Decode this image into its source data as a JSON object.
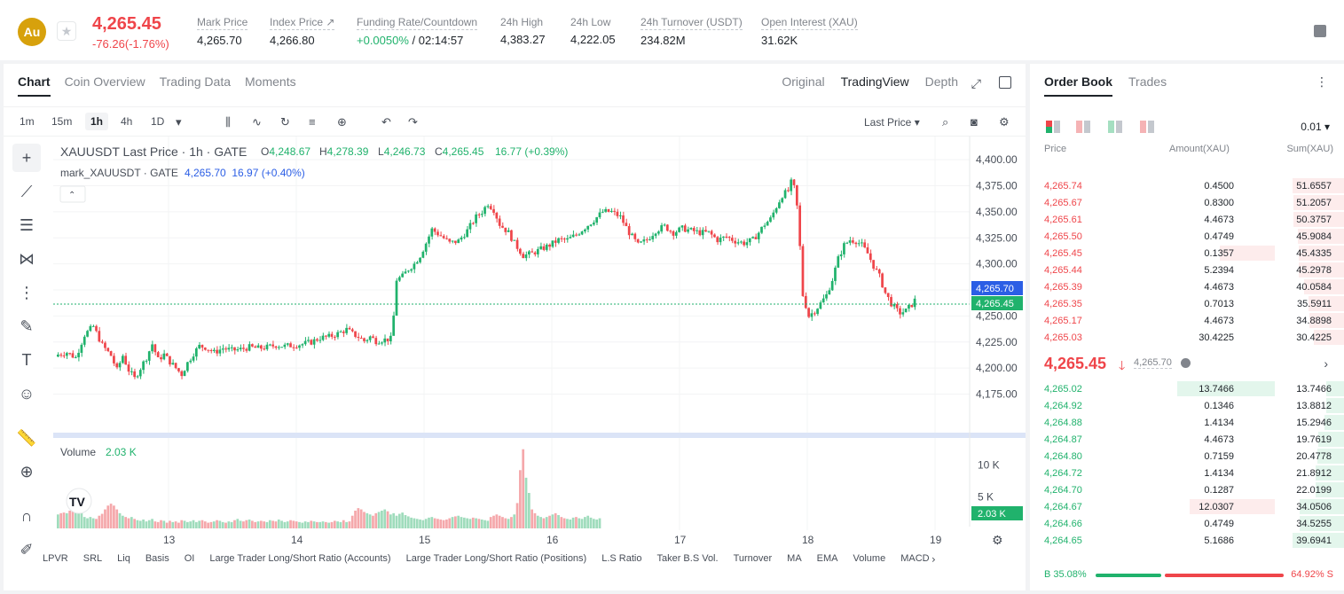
{
  "ticker": {
    "coin": "Au",
    "last_price": "4,265.45",
    "change": "-76.26(-1.76%)",
    "stats": [
      {
        "label": "Mark Price",
        "value": "4,265.70"
      },
      {
        "label": "Index Price ↗",
        "value": "4,266.80"
      },
      {
        "label": "Funding Rate/Countdown",
        "value_rate": "+0.0050%",
        "value_count": " / 02:14:57"
      },
      {
        "label": "24h High",
        "value": "4,383.27"
      },
      {
        "label": "24h Low",
        "value": "4,222.05"
      },
      {
        "label": "24h Turnover (USDT)",
        "value": "234.82M"
      },
      {
        "label": "Open Interest (XAU)",
        "value": "31.62K"
      }
    ]
  },
  "chart_tabs": [
    "Chart",
    "Coin Overview",
    "Trading Data",
    "Moments"
  ],
  "view_tabs": [
    "Original",
    "TradingView",
    "Depth"
  ],
  "toolbar": {
    "timeframes": [
      "1m",
      "15m",
      "1h",
      "4h",
      "1D"
    ],
    "price_type": "Last Price"
  },
  "legend": {
    "symbol": "XAUUSDT Last Price · 1h · GATE",
    "o_label": "O",
    "o": "4,248.67",
    "h_label": "H",
    "h": "4,278.39",
    "l_label": "L",
    "l": "4,246.73",
    "c_label": "C",
    "c": "4,265.45",
    "chg": "16.77 (+0.39%)",
    "mark_label": "mark_XAUUSDT · GATE",
    "mark_values": "4,265.70  16.97 (+0.40%)",
    "volume_label": "Volume",
    "volume_value": "2.03 K"
  },
  "chart_data": {
    "type": "candlestick",
    "x_ticks": [
      "13",
      "14",
      "15",
      "16",
      "17",
      "18",
      "19"
    ],
    "y_ticks": [
      "4,400.00",
      "4,375.00",
      "4,350.00",
      "4,325.00",
      "4,300.00",
      "4,275.00",
      "4,250.00",
      "4,225.00",
      "4,200.00",
      "4,175.00"
    ],
    "ylim": [
      4161,
      4412
    ],
    "volume_ticks": [
      "10 K",
      "5 K"
    ],
    "volume_ylim": [
      0,
      14000
    ],
    "mark_price_tag": "4,265.70",
    "last_price_tag": "4,265.45",
    "volume_tag": "2.03 K",
    "close_path": [
      [
        0,
        4213
      ],
      [
        3,
        4215
      ],
      [
        6,
        4210
      ],
      [
        9,
        4232
      ],
      [
        12,
        4240
      ],
      [
        15,
        4222
      ],
      [
        18,
        4212
      ],
      [
        20,
        4198
      ],
      [
        22,
        4212
      ],
      [
        24,
        4198
      ],
      [
        26,
        4190
      ],
      [
        28,
        4200
      ],
      [
        30,
        4210
      ],
      [
        32,
        4223
      ],
      [
        34,
        4208
      ],
      [
        36,
        4213
      ],
      [
        38,
        4206
      ],
      [
        40,
        4200
      ],
      [
        42,
        4194
      ],
      [
        44,
        4205
      ],
      [
        46,
        4214
      ],
      [
        48,
        4221
      ],
      [
        50,
        4220
      ],
      [
        53,
        4215
      ],
      [
        56,
        4219
      ],
      [
        59,
        4217
      ],
      [
        62,
        4218
      ],
      [
        65,
        4220
      ],
      [
        68,
        4219
      ],
      [
        71,
        4220
      ],
      [
        74,
        4222
      ],
      [
        77,
        4221
      ],
      [
        80,
        4222
      ],
      [
        83,
        4223
      ],
      [
        86,
        4225
      ],
      [
        89,
        4229
      ],
      [
        92,
        4230
      ],
      [
        95,
        4233
      ],
      [
        98,
        4237
      ],
      [
        100,
        4233
      ],
      [
        102,
        4230
      ],
      [
        104,
        4226
      ],
      [
        106,
        4230
      ],
      [
        108,
        4226
      ],
      [
        110,
        4227
      ],
      [
        113,
        4228
      ],
      [
        114,
        4250
      ],
      [
        115,
        4285
      ],
      [
        117,
        4288
      ],
      [
        119,
        4295
      ],
      [
        121,
        4300
      ],
      [
        123,
        4308
      ],
      [
        125,
        4320
      ],
      [
        127,
        4333
      ],
      [
        130,
        4327
      ],
      [
        133,
        4320
      ],
      [
        136,
        4322
      ],
      [
        139,
        4332
      ],
      [
        142,
        4345
      ],
      [
        144,
        4350
      ],
      [
        146,
        4358
      ],
      [
        148,
        4352
      ],
      [
        150,
        4338
      ],
      [
        153,
        4330
      ],
      [
        155,
        4320
      ],
      [
        158,
        4308
      ],
      [
        161,
        4310
      ],
      [
        164,
        4314
      ],
      [
        167,
        4318
      ],
      [
        170,
        4323
      ],
      [
        173,
        4323
      ],
      [
        176,
        4328
      ],
      [
        179,
        4335
      ],
      [
        182,
        4342
      ],
      [
        185,
        4350
      ],
      [
        188,
        4350
      ],
      [
        191,
        4345
      ],
      [
        194,
        4330
      ],
      [
        197,
        4318
      ],
      [
        200,
        4323
      ],
      [
        203,
        4332
      ],
      [
        206,
        4336
      ],
      [
        209,
        4330
      ],
      [
        212,
        4334
      ],
      [
        215,
        4332
      ],
      [
        218,
        4330
      ],
      [
        221,
        4330
      ],
      [
        224,
        4323
      ],
      [
        227,
        4326
      ],
      [
        230,
        4322
      ],
      [
        233,
        4320
      ],
      [
        236,
        4323
      ],
      [
        238,
        4330
      ],
      [
        240,
        4338
      ],
      [
        242,
        4343
      ],
      [
        244,
        4355
      ],
      [
        246,
        4366
      ],
      [
        248,
        4370
      ],
      [
        249,
        4378
      ],
      [
        250,
        4373
      ],
      [
        251,
        4355
      ],
      [
        252,
        4316
      ],
      [
        253,
        4270
      ],
      [
        255,
        4250
      ],
      [
        257,
        4255
      ],
      [
        259,
        4262
      ],
      [
        261,
        4270
      ],
      [
        263,
        4285
      ],
      [
        265,
        4305
      ],
      [
        267,
        4318
      ],
      [
        269,
        4323
      ],
      [
        271,
        4322
      ],
      [
        273,
        4318
      ],
      [
        275,
        4310
      ],
      [
        277,
        4298
      ],
      [
        279,
        4288
      ],
      [
        281,
        4272
      ],
      [
        283,
        4262
      ],
      [
        285,
        4255
      ],
      [
        286,
        4253
      ],
      [
        288,
        4255
      ],
      [
        290,
        4261
      ],
      [
        291,
        4265
      ]
    ],
    "volume_heights": [
      2200,
      2400,
      2500,
      2400,
      2800,
      3000,
      2800,
      2600,
      2400,
      1800,
      1600,
      1800,
      1600,
      1500,
      2000,
      2300,
      3000,
      3600,
      3900,
      3600,
      3000,
      2400,
      2000,
      1800,
      1600,
      1800,
      1500,
      1300,
      1200,
      1400,
      1100,
      1300,
      1500,
      1100,
      1000,
      1300,
      1200,
      900,
      1200,
      1000,
      1100,
      900,
      1300,
      1200,
      1000,
      1100,
      1300,
      1000,
      1200,
      1300,
      1100,
      900,
      1000,
      1100,
      1300,
      1200,
      1000,
      900,
      1100,
      1000,
      1300,
      1500,
      1200,
      1100,
      1300,
      1400,
      1200,
      1000,
      1100,
      1200,
      1100,
      1000,
      1300,
      1200,
      1100,
      1400,
      1200,
      1000,
      1100,
      1300,
      1200,
      1100,
      1000,
      900,
      1100,
      1000,
      1200,
      1100,
      1000,
      1000,
      1100,
      1000,
      900,
      1000,
      1200,
      1100,
      1000,
      1300,
      1000,
      1100,
      2000,
      2800,
      3200,
      3000,
      2600,
      2400,
      2200,
      2000,
      2400,
      2600,
      2800,
      3000,
      2700,
      2200,
      2400,
      2000,
      2300,
      2500,
      2100,
      1900,
      1700,
      1600,
      1500,
      1400,
      1300,
      1500,
      1700,
      1800,
      1600,
      1500,
      1400,
      1300,
      1400,
      1600,
      1800,
      1900,
      2000,
      1800,
      1700,
      1600,
      1500,
      1700,
      1600,
      1500,
      1400,
      1300,
      1200,
      1800,
      2000,
      2200,
      2000,
      1800,
      1600,
      1500,
      1800,
      2200,
      4000,
      9200,
      12500,
      8000,
      5600,
      3000,
      2400,
      2000,
      1800,
      1600,
      1800,
      2000,
      2200,
      2400,
      2100,
      1800,
      1600,
      1500,
      1400,
      1700,
      1800,
      1600,
      1500,
      1800,
      2000,
      1700,
      1500,
      1400,
      1600
    ]
  },
  "indicators": [
    "LPVR",
    "SRL",
    "Liq",
    "Basis",
    "OI",
    "Large Trader Long/Short Ratio (Accounts)",
    "Large Trader Long/Short Ratio (Positions)",
    "L.S Ratio",
    "Taker B.S Vol.",
    "Turnover",
    "MA",
    "EMA",
    "Volume",
    "MACD"
  ],
  "order_book": {
    "tabs": [
      "Order Book",
      "Trades"
    ],
    "precision": "0.01",
    "headers": {
      "price": "Price",
      "amount": "Amount(XAU)",
      "sum": "Sum(XAU)"
    },
    "asks": [
      {
        "price": "4,265.74",
        "amount": "0.4500",
        "sum": "51.6557",
        "depth": 1.0
      },
      {
        "price": "4,265.67",
        "amount": "0.8300",
        "sum": "51.2057",
        "depth": 0.99
      },
      {
        "price": "4,265.61",
        "amount": "4.4673",
        "sum": "50.3757",
        "depth": 0.975
      },
      {
        "price": "4,265.50",
        "amount": "0.4749",
        "sum": "45.9084",
        "depth": 0.89
      },
      {
        "price": "4,265.45",
        "amount": "0.1357",
        "sum": "45.4335",
        "depth": 0.88,
        "hl": 0.4
      },
      {
        "price": "4,265.44",
        "amount": "5.2394",
        "sum": "45.2978",
        "depth": 0.877
      },
      {
        "price": "4,265.39",
        "amount": "4.4673",
        "sum": "40.0584",
        "depth": 0.776
      },
      {
        "price": "4,265.35",
        "amount": "0.7013",
        "sum": "35.5911",
        "depth": 0.689
      },
      {
        "price": "4,265.17",
        "amount": "4.4673",
        "sum": "34.8898",
        "depth": 0.675
      },
      {
        "price": "4,265.03",
        "amount": "30.4225",
        "sum": "30.4225",
        "depth": 0.589
      }
    ],
    "mid": {
      "price": "4,265.45",
      "arrow": "🡓",
      "mark": "4,265.70"
    },
    "bids": [
      {
        "price": "4,265.02",
        "amount": "13.7466",
        "sum": "13.7466",
        "depth": 0.346,
        "hl": 0.71
      },
      {
        "price": "4,264.92",
        "amount": "0.1346",
        "sum": "13.8812",
        "depth": 0.35
      },
      {
        "price": "4,264.88",
        "amount": "1.4134",
        "sum": "15.2946",
        "depth": 0.385
      },
      {
        "price": "4,264.87",
        "amount": "4.4673",
        "sum": "19.7619",
        "depth": 0.498
      },
      {
        "price": "4,264.80",
        "amount": "0.7159",
        "sum": "20.4778",
        "depth": 0.516
      },
      {
        "price": "4,264.72",
        "amount": "1.4134",
        "sum": "21.8912",
        "depth": 0.551
      },
      {
        "price": "4,264.70",
        "amount": "0.1287",
        "sum": "22.0199",
        "depth": 0.555
      },
      {
        "price": "4,264.67",
        "amount": "12.0307",
        "sum": "34.0506",
        "depth": 0.858,
        "hl": 0.62,
        "hl_red": true
      },
      {
        "price": "4,264.66",
        "amount": "0.4749",
        "sum": "34.5255",
        "depth": 0.87
      },
      {
        "price": "4,264.65",
        "amount": "5.1686",
        "sum": "39.6941",
        "depth": 1.0
      }
    ],
    "ratio": {
      "buy": "B 35.08%",
      "sell": "64.92% S"
    }
  }
}
